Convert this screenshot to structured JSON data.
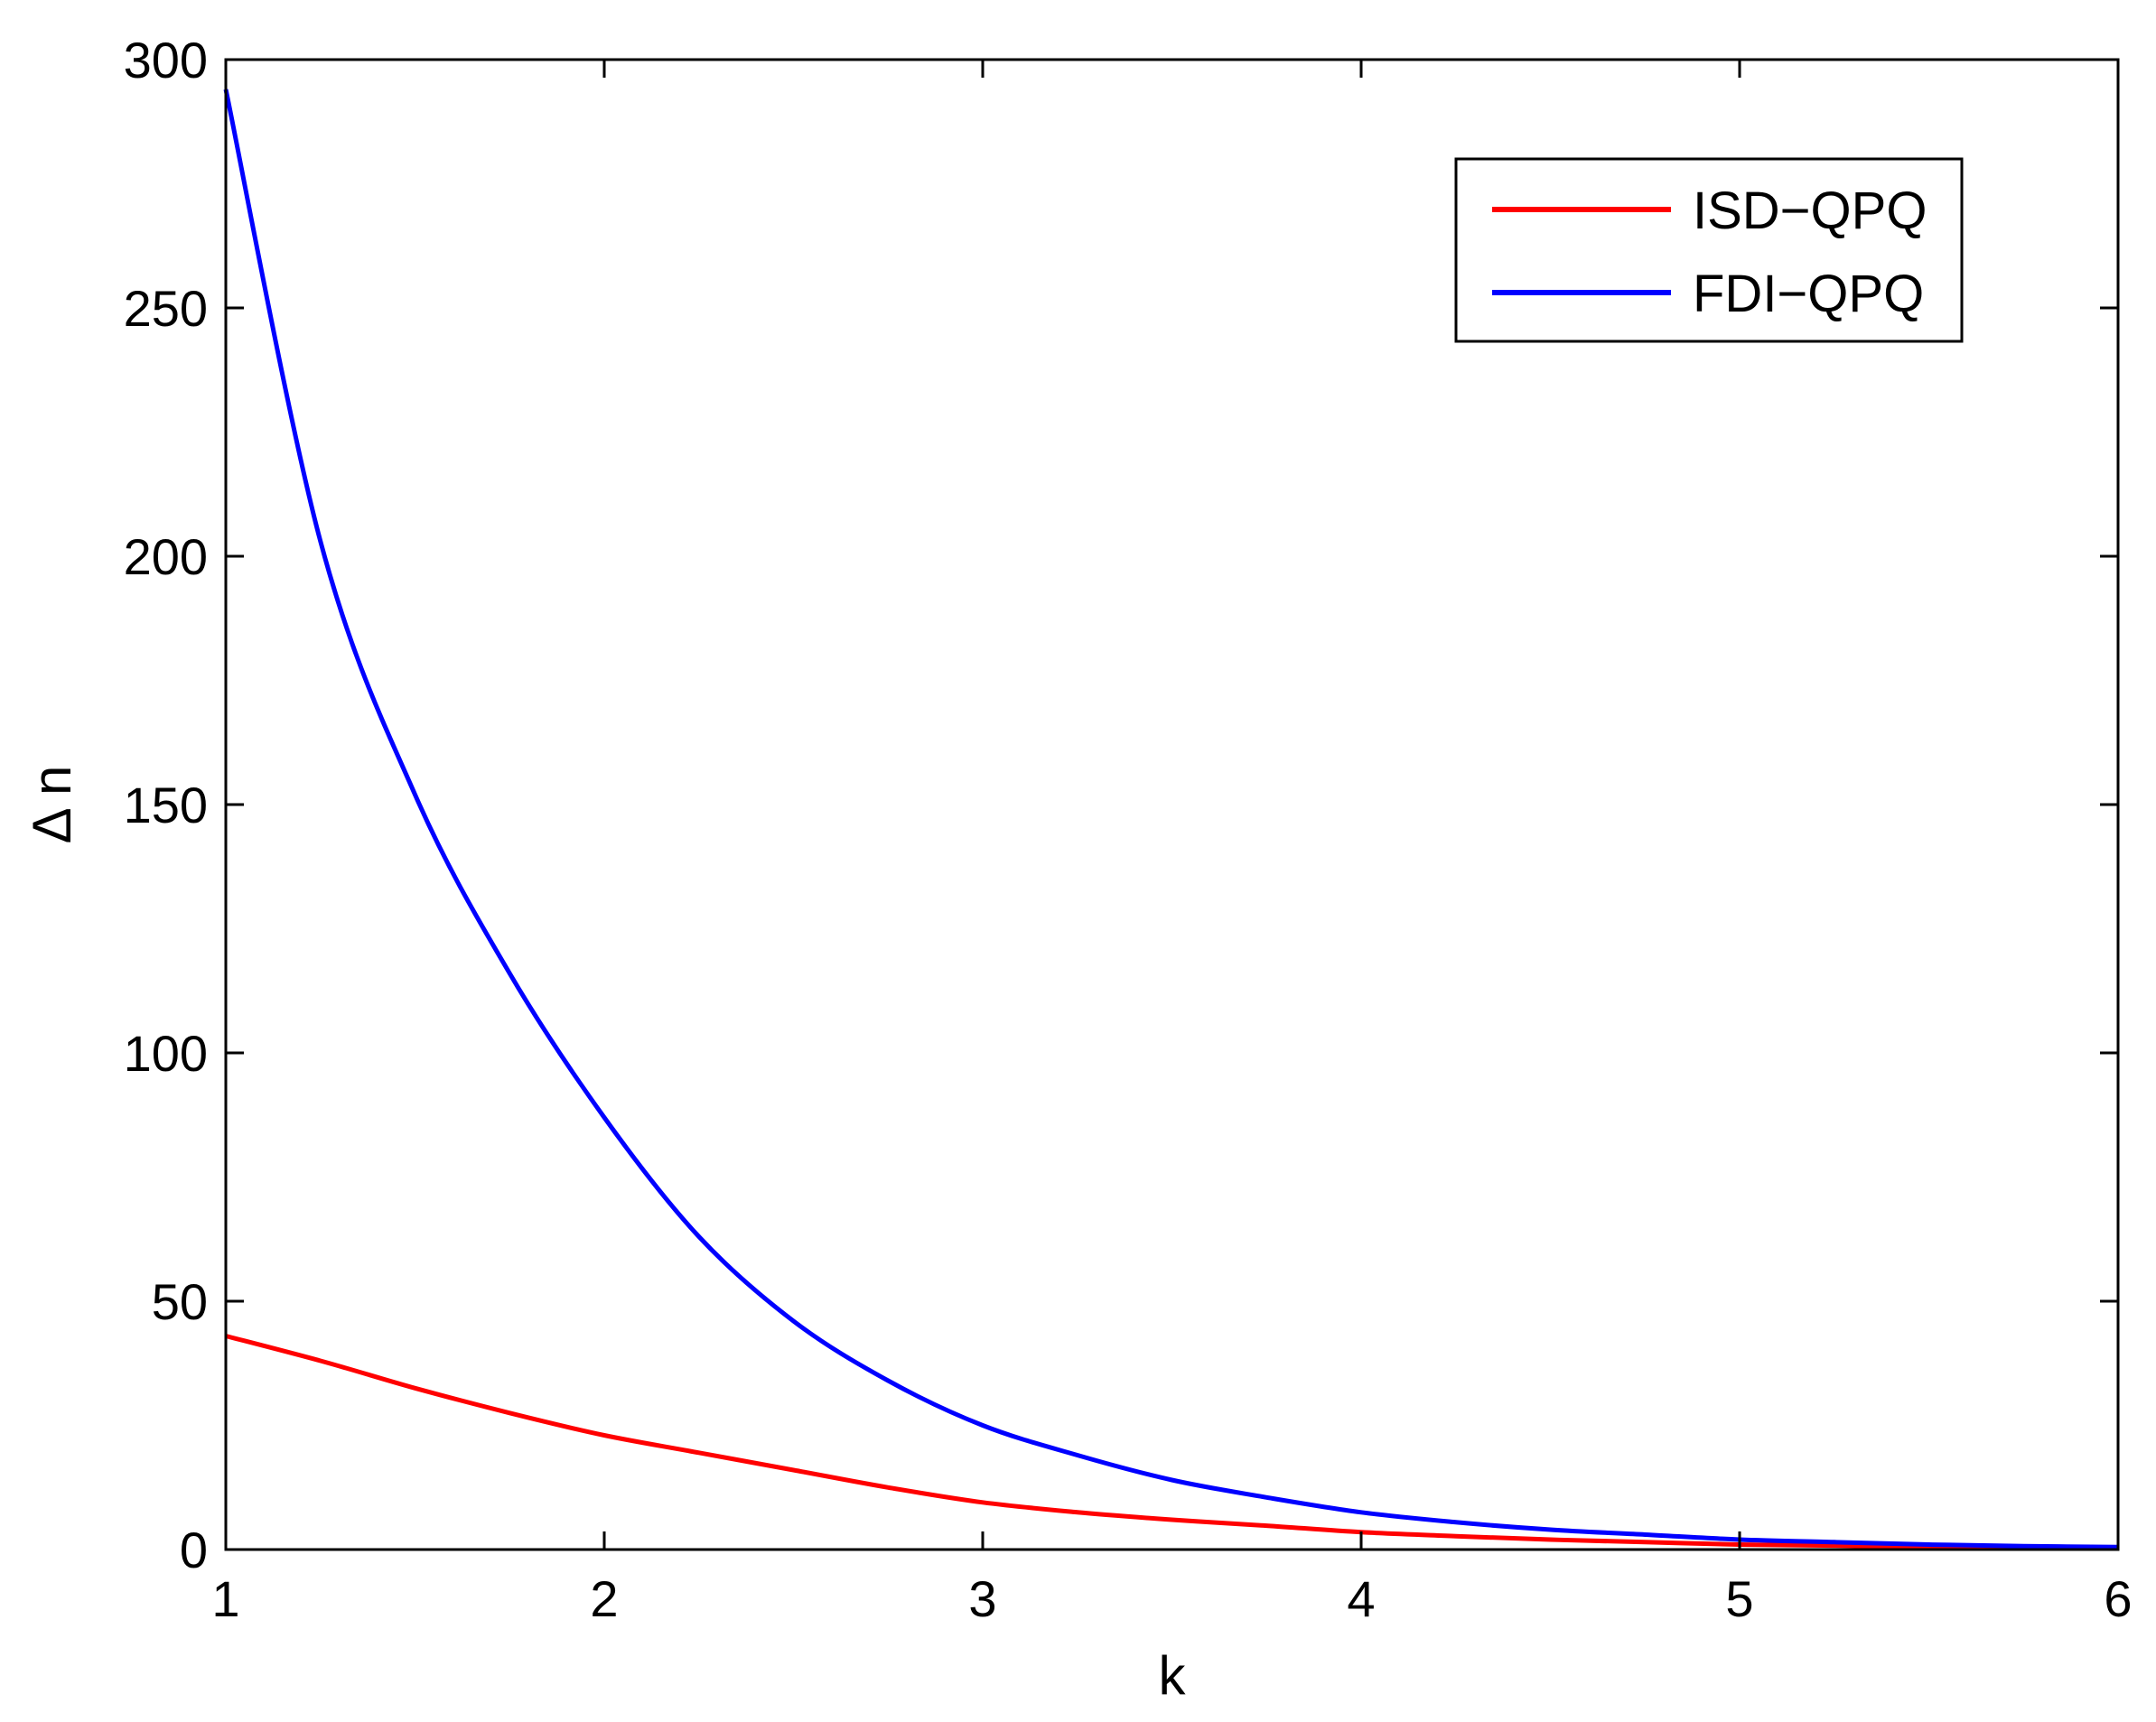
{
  "chart_data": {
    "type": "line",
    "xlabel": "k",
    "ylabel": "Δ n",
    "xlim": [
      1,
      6
    ],
    "ylim": [
      0,
      300
    ],
    "xticks": [
      "1",
      "2",
      "3",
      "4",
      "5",
      "6"
    ],
    "yticks": [
      "0",
      "50",
      "100",
      "150",
      "200",
      "250",
      "300"
    ],
    "grid": false,
    "legend_position": "top-right",
    "x": [
      1.0,
      1.25,
      1.5,
      1.75,
      2.0,
      2.25,
      2.5,
      2.75,
      3.0,
      3.25,
      3.5,
      3.75,
      4.0,
      4.25,
      4.5,
      4.75,
      5.0,
      5.25,
      5.5,
      5.75,
      6.0
    ],
    "series": [
      {
        "name": "ISD−QPQ",
        "color": "#ff0000",
        "values": [
          43,
          38,
          32.5,
          27.5,
          23,
          19.5,
          16,
          12.5,
          9.5,
          7.5,
          6,
          4.8,
          3.5,
          2.7,
          2,
          1.5,
          1,
          0.8,
          0.5,
          0.4,
          0.3
        ]
      },
      {
        "name": "FDI−QPQ",
        "color": "#0000ff",
        "values": [
          294,
          203,
          152,
          116,
          87,
          63,
          46,
          34,
          25,
          19,
          14,
          10.5,
          7.5,
          5.5,
          4,
          3,
          2,
          1.5,
          1,
          0.7,
          0.5
        ]
      }
    ]
  }
}
